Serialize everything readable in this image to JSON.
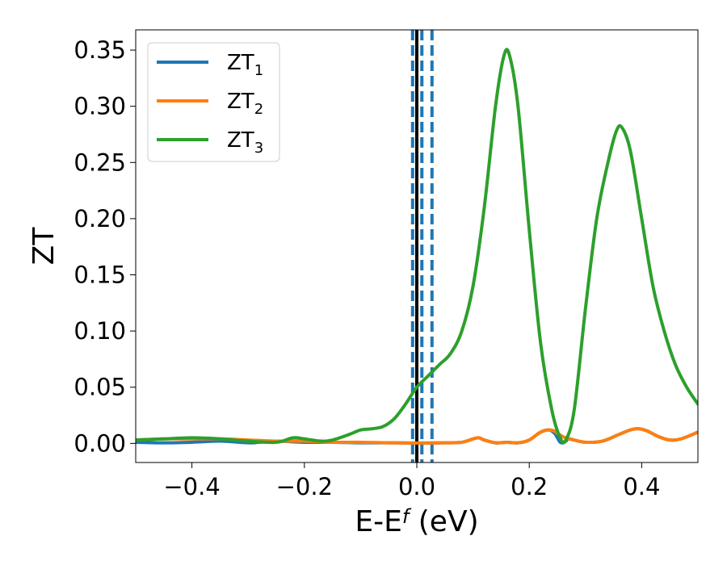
{
  "chart_data": {
    "type": "line",
    "xlabel": "E-E",
    "xlabel_sub": "f",
    "xlabel_unit": " (eV)",
    "ylabel": "ZT",
    "xlim": [
      -0.5,
      0.5
    ],
    "ylim": [
      -0.017,
      0.368
    ],
    "xticks": [
      -0.4,
      -0.2,
      0.0,
      0.2,
      0.4
    ],
    "xtick_labels": [
      "−0.4",
      "−0.2",
      "0.0",
      "0.2",
      "0.4"
    ],
    "yticks": [
      0.0,
      0.05,
      0.1,
      0.15,
      0.2,
      0.25,
      0.3,
      0.35
    ],
    "ytick_labels": [
      "0.00",
      "0.05",
      "0.10",
      "0.15",
      "0.20",
      "0.25",
      "0.30",
      "0.35"
    ],
    "grid": false,
    "legend": {
      "position": "top-left"
    },
    "vertical_lines": [
      {
        "x": 0.0,
        "style": "solid",
        "color": "#000000"
      },
      {
        "x": -0.0075,
        "style": "dashed",
        "color": "#1f77b4"
      },
      {
        "x": 0.009,
        "style": "dashed",
        "color": "#1f77b4"
      },
      {
        "x": 0.027,
        "style": "dashed",
        "color": "#1f77b4"
      }
    ],
    "series": [
      {
        "name": "ZT",
        "sub": "1",
        "color": "#1f77b4",
        "x": [
          -0.5,
          -0.45,
          -0.4,
          -0.35,
          -0.3,
          -0.28,
          -0.25,
          -0.2,
          -0.15,
          -0.1,
          -0.05,
          0.0,
          0.05,
          0.08,
          0.1,
          0.11,
          0.12,
          0.14,
          0.16,
          0.18,
          0.2,
          0.22,
          0.235,
          0.245,
          0.25,
          0.255,
          0.26,
          0.265,
          0.27,
          0.28,
          0.3,
          0.33,
          0.36,
          0.38,
          0.395,
          0.41,
          0.43,
          0.45,
          0.47,
          0.5
        ],
        "y": [
          0.001,
          0.0005,
          0.001,
          0.002,
          0.0005,
          0.001,
          0.002,
          0.001,
          0.001,
          0.0005,
          0.0005,
          0.0003,
          0.0005,
          0.001,
          0.004,
          0.005,
          0.003,
          0.0005,
          0.001,
          0.0005,
          0.003,
          0.01,
          0.012,
          0.009,
          0.005,
          0.001,
          0.0005,
          0.002,
          0.004,
          0.003,
          0.001,
          0.002,
          0.008,
          0.012,
          0.013,
          0.011,
          0.006,
          0.003,
          0.004,
          0.01
        ]
      },
      {
        "name": "ZT",
        "sub": "2",
        "color": "#ff7f0e",
        "x": [
          -0.5,
          -0.45,
          -0.4,
          -0.35,
          -0.3,
          -0.25,
          -0.2,
          -0.15,
          -0.1,
          -0.05,
          0.0,
          0.05,
          0.08,
          0.1,
          0.11,
          0.12,
          0.14,
          0.16,
          0.18,
          0.2,
          0.22,
          0.235,
          0.245,
          0.25,
          0.26,
          0.27,
          0.28,
          0.3,
          0.33,
          0.36,
          0.38,
          0.395,
          0.41,
          0.43,
          0.45,
          0.47,
          0.5
        ],
        "y": [
          0.003,
          0.004,
          0.004,
          0.004,
          0.003,
          0.002,
          0.002,
          0.001,
          0.001,
          0.0005,
          0.0003,
          0.0005,
          0.001,
          0.004,
          0.005,
          0.003,
          0.0005,
          0.001,
          0.0005,
          0.003,
          0.01,
          0.012,
          0.011,
          0.009,
          0.006,
          0.004,
          0.003,
          0.001,
          0.002,
          0.008,
          0.012,
          0.013,
          0.011,
          0.006,
          0.003,
          0.004,
          0.01
        ]
      },
      {
        "name": "ZT",
        "sub": "3",
        "color": "#2ca02c",
        "x": [
          -0.5,
          -0.45,
          -0.4,
          -0.35,
          -0.3,
          -0.25,
          -0.22,
          -0.2,
          -0.17,
          -0.15,
          -0.12,
          -0.1,
          -0.08,
          -0.06,
          -0.04,
          -0.02,
          0.0,
          0.02,
          0.04,
          0.06,
          0.08,
          0.1,
          0.12,
          0.14,
          0.155,
          0.165,
          0.18,
          0.2,
          0.22,
          0.24,
          0.255,
          0.265,
          0.28,
          0.3,
          0.32,
          0.34,
          0.355,
          0.365,
          0.38,
          0.4,
          0.42,
          0.44,
          0.46,
          0.48,
          0.5
        ],
        "y": [
          0.003,
          0.004,
          0.005,
          0.004,
          0.002,
          0.001,
          0.005,
          0.004,
          0.002,
          0.003,
          0.008,
          0.012,
          0.013,
          0.015,
          0.022,
          0.035,
          0.05,
          0.06,
          0.07,
          0.08,
          0.1,
          0.14,
          0.21,
          0.3,
          0.345,
          0.345,
          0.3,
          0.19,
          0.09,
          0.03,
          0.005,
          0.003,
          0.03,
          0.12,
          0.2,
          0.25,
          0.278,
          0.281,
          0.26,
          0.2,
          0.14,
          0.1,
          0.07,
          0.05,
          0.035
        ]
      }
    ]
  }
}
